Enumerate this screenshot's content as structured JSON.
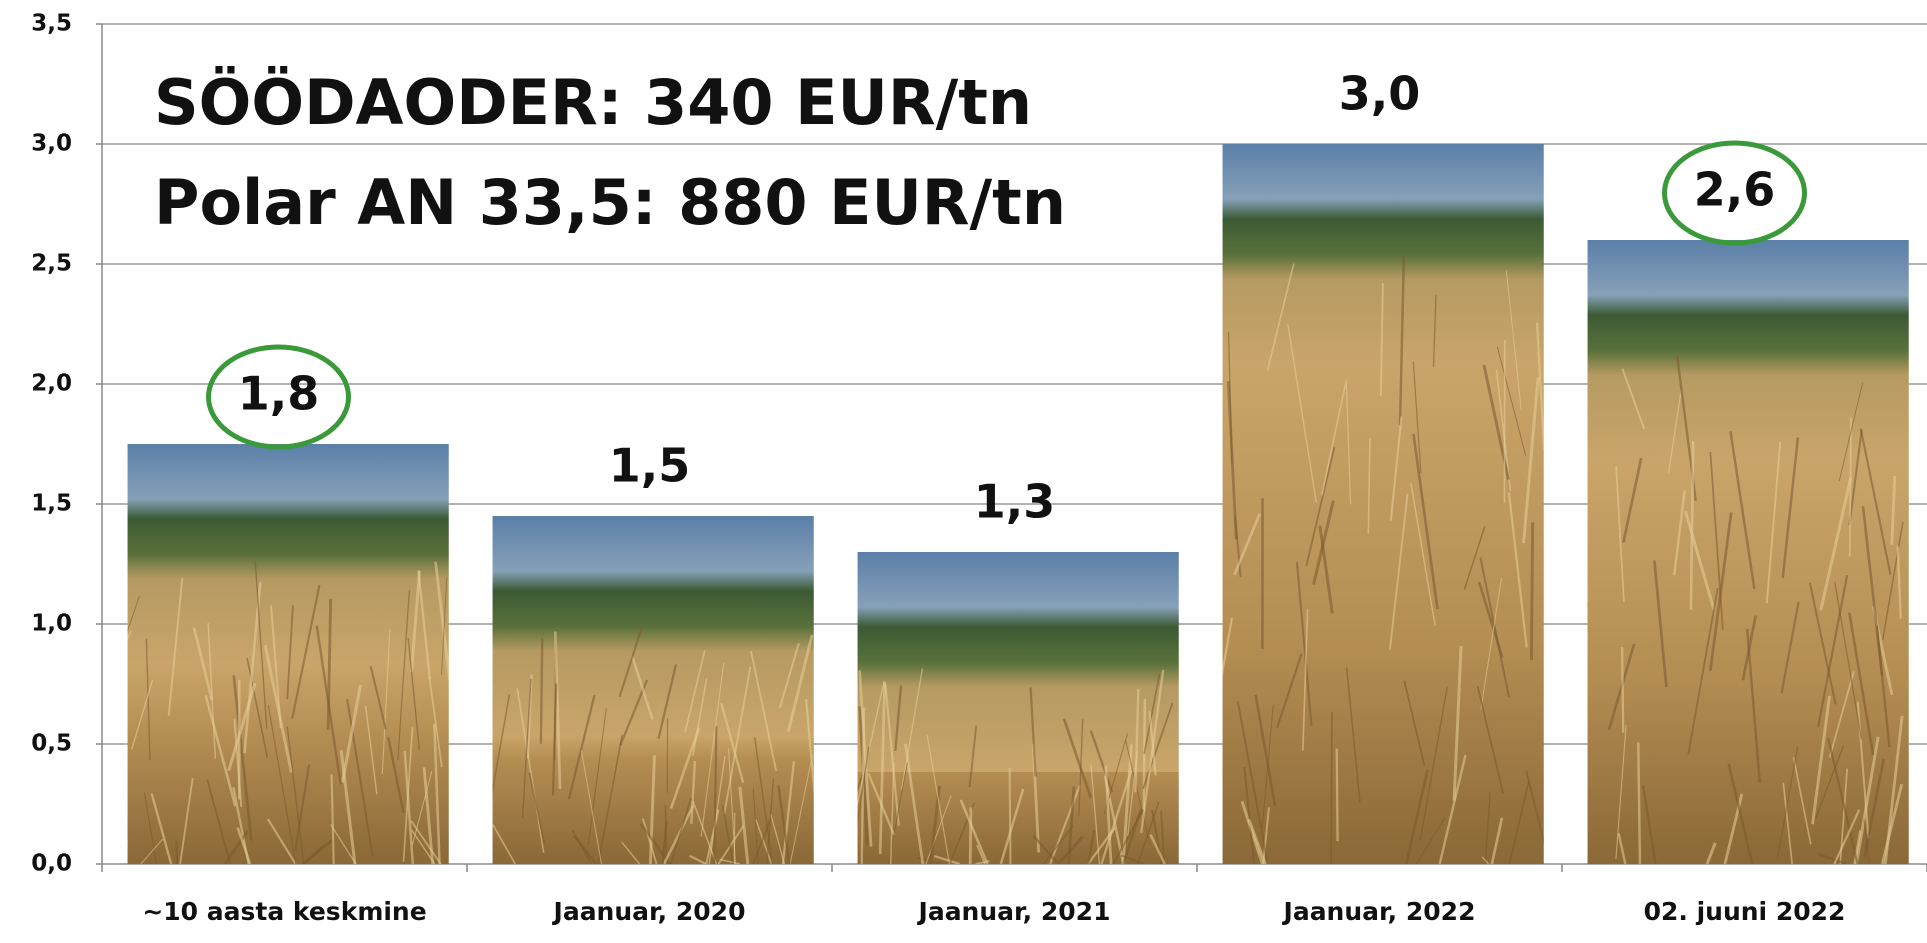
{
  "chart_data": {
    "type": "bar",
    "annotations": [
      "SÖÖDAODER: 340 EUR/tn",
      "Polar AN 33,5: 880 EUR/tn"
    ],
    "categories": [
      "~10 aasta keskmine",
      "Jaanuar, 2020",
      "Jaanuar, 2021",
      "Jaanuar, 2022",
      "02. juuni 2022"
    ],
    "values": [
      1.75,
      1.45,
      1.3,
      3.0,
      2.6
    ],
    "value_labels": [
      "1,8",
      "1,5",
      "1,3",
      "3,0",
      "2,6"
    ],
    "circled": [
      true,
      false,
      false,
      false,
      true
    ],
    "circle_color": "#3a9a3a",
    "ylim": [
      0,
      3.5
    ],
    "yticks": [
      {
        "value": 0,
        "label": "0,0"
      },
      {
        "value": 0.5,
        "label": "0,5"
      },
      {
        "value": 1,
        "label": "1,0"
      },
      {
        "value": 1.5,
        "label": "1,5"
      },
      {
        "value": 2,
        "label": "2,0"
      },
      {
        "value": 2.5,
        "label": "2,5"
      },
      {
        "value": 3,
        "label": "3,0"
      },
      {
        "value": 3.5,
        "label": "3,5"
      }
    ],
    "grid": true
  }
}
